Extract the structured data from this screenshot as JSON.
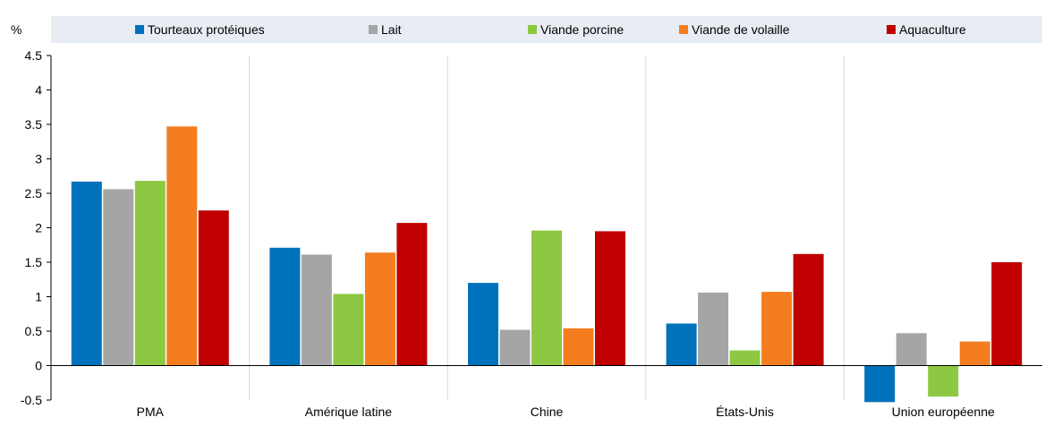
{
  "chart_data": {
    "type": "bar",
    "ylabel": "%",
    "ylim": [
      -0.5,
      4.5
    ],
    "yticks": [
      "-0.5",
      "0",
      "0.5",
      "1",
      "1.5",
      "2",
      "2.5",
      "3",
      "3.5",
      "4",
      "4.5"
    ],
    "ytick_values": [
      -0.5,
      0,
      0.5,
      1,
      1.5,
      2,
      2.5,
      3,
      3.5,
      4,
      4.5
    ],
    "categories": [
      "PMA",
      "Amérique latine",
      "Chine",
      "États-Unis",
      "Union européenne"
    ],
    "legend_position": "top",
    "grid": "vertical separators between categories",
    "series": [
      {
        "name": "Tourteaux protéiques",
        "color": "#0072BC",
        "values": [
          2.67,
          1.71,
          1.2,
          0.61,
          -0.53
        ]
      },
      {
        "name": "Lait",
        "color": "#A5A5A5",
        "values": [
          2.56,
          1.61,
          0.52,
          1.06,
          0.47
        ]
      },
      {
        "name": "Viande porcine",
        "color": "#8CC841",
        "values": [
          2.68,
          1.04,
          1.96,
          0.22,
          -0.45
        ]
      },
      {
        "name": "Viande de volaille",
        "color": "#F47D20",
        "values": [
          3.47,
          1.64,
          0.54,
          1.07,
          0.35
        ]
      },
      {
        "name": "Aquaculture",
        "color": "#C00000",
        "values": [
          2.25,
          2.07,
          1.95,
          1.62,
          1.5
        ]
      }
    ]
  }
}
